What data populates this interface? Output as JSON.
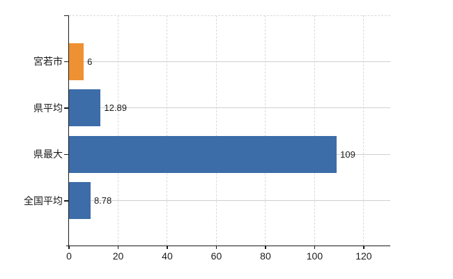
{
  "chart_data": {
    "type": "bar",
    "orientation": "horizontal",
    "title": "",
    "xlabel": "",
    "ylabel": "",
    "categories": [
      "宮若市",
      "県平均",
      "県最大",
      "全国平均"
    ],
    "values": [
      6,
      12.89,
      109,
      8.78
    ],
    "value_labels": [
      "6",
      "12.89",
      "109",
      "8.78"
    ],
    "bar_colors": [
      "#ee9132",
      "#3c6da8",
      "#3c6da8",
      "#3c6da8"
    ],
    "x_ticks": [
      0,
      20,
      40,
      60,
      80,
      100,
      120
    ],
    "x_tick_labels": [
      "0",
      "20",
      "40",
      "60",
      "80",
      "100",
      "120"
    ],
    "xlim": [
      0,
      130.8
    ],
    "grid": {
      "vertical": "dashed",
      "horizontal": "solid"
    },
    "legend": "none",
    "colors": {
      "bar_blue": "#3c6da8",
      "bar_orange": "#ee9132",
      "axis": "#1a1a1a",
      "vertical_grid": "#d9d9d9",
      "horizontal_grid": "#ccd2cc",
      "background": "#ffffff",
      "text": "#1a1a1a"
    }
  }
}
